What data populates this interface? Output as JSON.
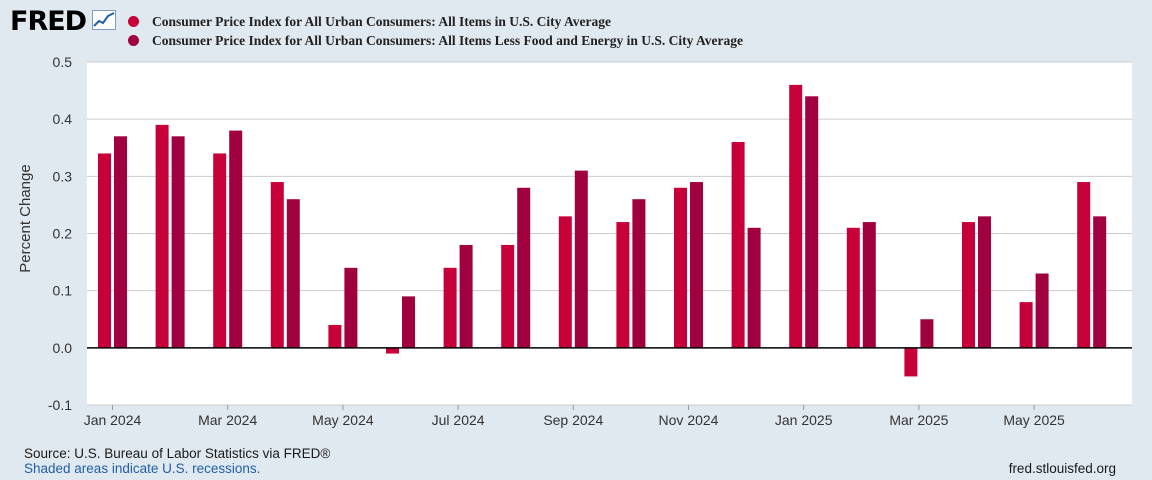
{
  "header": {
    "logo_text": "FRED",
    "logo_icon": "trend-line-icon"
  },
  "colors": {
    "series1": "#c8003a",
    "series2": "#a1003f",
    "background": "#e1e9f0",
    "plot_background": "#ffffff",
    "grid": "#cccccc"
  },
  "chart_data": {
    "type": "bar",
    "title": "",
    "ylabel": "Percent Change",
    "xlabel": "",
    "ylim": [
      -0.1,
      0.5
    ],
    "yticks": [
      "0.5",
      "0.4",
      "0.3",
      "0.2",
      "0.1",
      "0.0",
      "-0.1"
    ],
    "ytick_values": [
      0.5,
      0.4,
      0.3,
      0.2,
      0.1,
      0.0,
      -0.1
    ],
    "grid": true,
    "categories": [
      "Jan 2024",
      "Feb 2024",
      "Mar 2024",
      "Apr 2024",
      "May 2024",
      "Jun 2024",
      "Jul 2024",
      "Aug 2024",
      "Sep 2024",
      "Oct 2024",
      "Nov 2024",
      "Dec 2024",
      "Jan 2025",
      "Feb 2025",
      "Mar 2025",
      "Apr 2025",
      "May 2025",
      "Jun 2025"
    ],
    "xtick_labels": [
      "Jan 2024",
      "Mar 2024",
      "May 2024",
      "Jul 2024",
      "Sep 2024",
      "Nov 2024",
      "Jan 2025",
      "Mar 2025",
      "May 2025"
    ],
    "xtick_indices": [
      0,
      2,
      4,
      6,
      8,
      10,
      12,
      14,
      16
    ],
    "series": [
      {
        "name": "Consumer Price Index for All Urban Consumers: All Items in U.S. City Average",
        "values": [
          0.34,
          0.39,
          0.34,
          0.29,
          0.04,
          -0.01,
          0.14,
          0.18,
          0.23,
          0.22,
          0.28,
          0.36,
          0.46,
          0.21,
          -0.05,
          0.22,
          0.08,
          0.29
        ]
      },
      {
        "name": "Consumer Price Index for All Urban Consumers: All Items Less Food and Energy in U.S. City Average",
        "values": [
          0.37,
          0.37,
          0.38,
          0.26,
          0.14,
          0.09,
          0.18,
          0.28,
          0.31,
          0.26,
          0.29,
          0.21,
          0.44,
          0.22,
          0.05,
          0.23,
          0.13,
          0.23
        ]
      }
    ]
  },
  "footer": {
    "source": "Source: U.S. Bureau of Labor Statistics via FRED®",
    "recessions": "Shaded areas indicate U.S. recessions.",
    "url": "fred.stlouisfed.org"
  }
}
